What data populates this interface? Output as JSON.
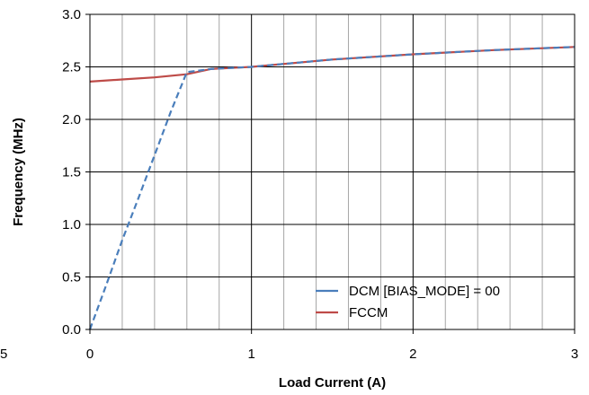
{
  "chart_data": {
    "type": "line",
    "xlabel": "Load Current (A)",
    "ylabel": "Frequency (MHz)",
    "xlim": [
      0,
      3
    ],
    "ylim": [
      0,
      3
    ],
    "x_ticks": [
      0,
      1,
      2,
      3
    ],
    "x_tick_labels": [
      "0",
      "1",
      "2",
      "3"
    ],
    "x_minor_step": 0.2,
    "y_ticks": [
      0,
      0.5,
      1,
      1.5,
      2,
      2.5,
      3
    ],
    "y_tick_labels": [
      "0.0",
      "0.5",
      "1.0",
      "1.5",
      "2.0",
      "2.5",
      "3.0"
    ],
    "partial_left_label": "5",
    "grid": true,
    "legend_position": "bottom-right",
    "series": [
      {
        "name": "DCM [BIAS_MODE] = 00",
        "color": "#4a7ebb",
        "style": "dashed",
        "x": [
          0,
          0.1,
          0.2,
          0.3,
          0.4,
          0.5,
          0.6,
          0.65,
          0.75,
          1.0,
          1.5,
          2.0,
          2.5,
          3.0
        ],
        "y": [
          0.0,
          0.42,
          0.85,
          1.25,
          1.66,
          2.07,
          2.45,
          2.46,
          2.48,
          2.5,
          2.57,
          2.62,
          2.66,
          2.69
        ]
      },
      {
        "name": "FCCM",
        "color": "#be4b48",
        "style": "solid",
        "x": [
          0,
          0.2,
          0.4,
          0.6,
          0.75,
          1.0,
          1.5,
          2.0,
          2.5,
          3.0
        ],
        "y": [
          2.36,
          2.38,
          2.4,
          2.43,
          2.48,
          2.5,
          2.57,
          2.62,
          2.66,
          2.69
        ]
      }
    ]
  }
}
